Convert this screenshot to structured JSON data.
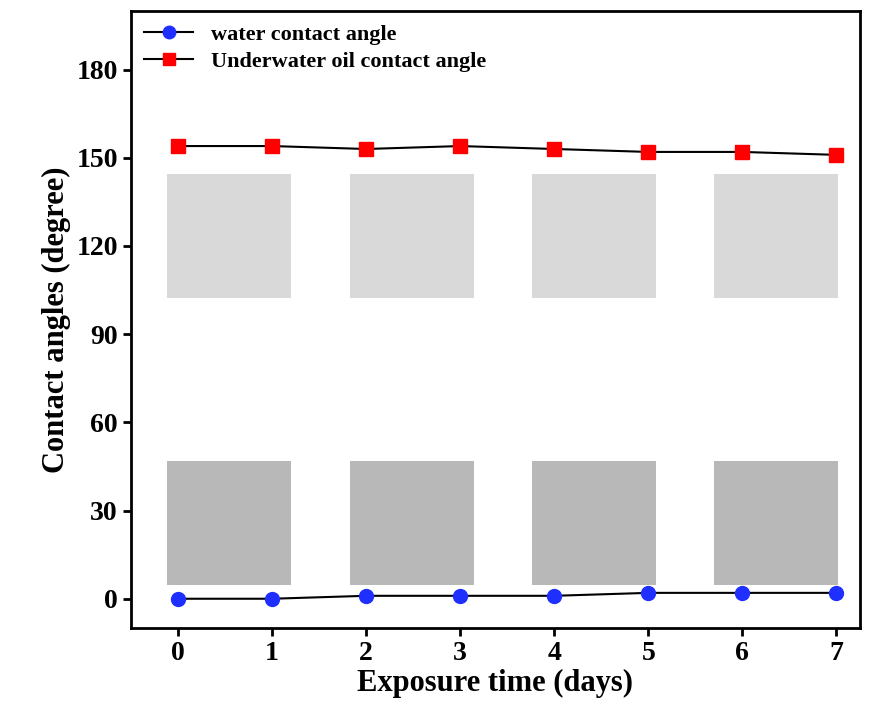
{
  "chart_data": {
    "type": "line",
    "x_label": "Exposure time (days)",
    "y_label": "Contact angles (degree)",
    "x": [
      0,
      1,
      2,
      3,
      4,
      5,
      6,
      7
    ],
    "series": [
      {
        "name": "water contact angle",
        "color": "#1f2fff",
        "marker": "circle",
        "line_style": "solid",
        "values": [
          0,
          0,
          1,
          1,
          1,
          2,
          2,
          2
        ]
      },
      {
        "name": "Underwater oil contact angle",
        "color": "#ff0000",
        "marker": "square",
        "line_style": "solid",
        "values": [
          154,
          154,
          153,
          154,
          153,
          152,
          152,
          151
        ]
      }
    ],
    "xlim": [
      -0.5,
      7.25
    ],
    "xticks": [
      0,
      1,
      2,
      3,
      4,
      5,
      6,
      7
    ],
    "ylim": [
      -10,
      200
    ],
    "yticks": [
      0,
      30,
      60,
      90,
      120,
      150,
      180
    ],
    "legend": "upper left",
    "grid": false
  }
}
